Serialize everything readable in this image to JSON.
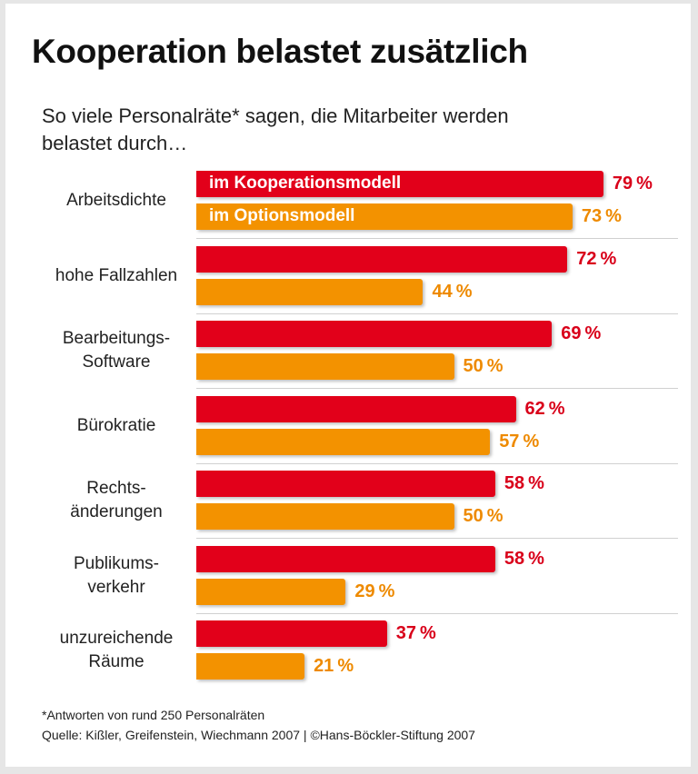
{
  "chart_data": {
    "type": "bar",
    "orientation": "horizontal",
    "title": "Kooperation belastet zusätzlich",
    "subtitle": "So viele Personalräte* sagen, die Mitarbeiter werden belastet durch…",
    "categories": [
      [
        "Arbeitsdichte"
      ],
      [
        "hohe Fallzahlen"
      ],
      [
        "Bearbeitungs-",
        "Software"
      ],
      [
        "Bürokratie"
      ],
      [
        "Rechts-",
        "änderungen"
      ],
      [
        "Publikums-",
        "verkehr"
      ],
      [
        "unzureichende",
        "Räume"
      ]
    ],
    "series": [
      {
        "name": "im Kooperationsmodell",
        "color": "#e2001a",
        "values": [
          79,
          72,
          69,
          62,
          58,
          58,
          37
        ]
      },
      {
        "name": "im Optionsmodell",
        "color": "#f39200",
        "values": [
          73,
          44,
          50,
          57,
          50,
          29,
          21
        ]
      }
    ],
    "unit": "%",
    "xlim": [
      0,
      100
    ],
    "grid": false,
    "legend": "inside first bars"
  },
  "footnote": {
    "note": "*Antworten von rund 250 Personalräten",
    "source": "Quelle: Kißler, Greifenstein, Wiechmann 2007 | ©Hans-Böckler-Stiftung 2007"
  }
}
